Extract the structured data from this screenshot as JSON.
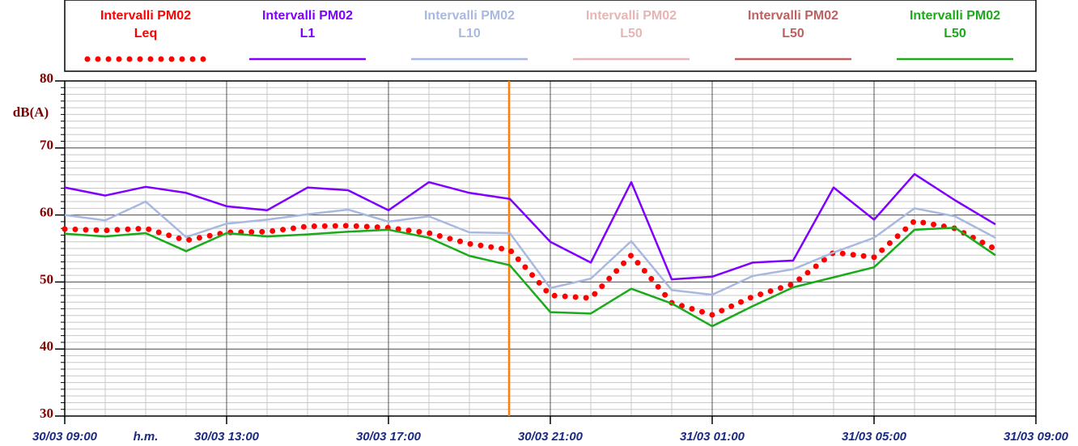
{
  "chart_data": {
    "type": "line",
    "ylabel": "dB(A)",
    "x_unit_label": "h.m.",
    "x": [
      0,
      1,
      2,
      3,
      4,
      5,
      6,
      7,
      8,
      9,
      10,
      11,
      12,
      13,
      14,
      15,
      16,
      17,
      18,
      19,
      20,
      21,
      22,
      23
    ],
    "xlim": [
      0,
      24
    ],
    "xticks": [
      {
        "value": 0,
        "label": "30/03 09:00"
      },
      {
        "value": 4,
        "label": "30/03 13:00"
      },
      {
        "value": 8,
        "label": "30/03 17:00"
      },
      {
        "value": 12,
        "label": "30/03 21:00"
      },
      {
        "value": 16,
        "label": "31/03 01:00"
      },
      {
        "value": 20,
        "label": "31/03 05:00"
      },
      {
        "value": 24,
        "label": "31/03 09:00"
      }
    ],
    "ylim": [
      30,
      80
    ],
    "yticks": [
      30,
      40,
      50,
      60,
      70,
      80
    ],
    "grid": true,
    "legend": "top",
    "series": [
      {
        "name": "Intervalli PM02 Leq",
        "color": "#ff0000",
        "style": "dots",
        "values": [
          57.9,
          57.7,
          58.0,
          56.2,
          57.4,
          57.5,
          58.3,
          58.4,
          58.1,
          57.3,
          55.7,
          54.8,
          48.0,
          47.6,
          54.0,
          46.9,
          45.1,
          47.8,
          49.7,
          54.4,
          53.7,
          59.1,
          58.0,
          54.9
        ]
      },
      {
        "name": "Intervalli PM02 L1",
        "color": "#7f00ff",
        "style": "line",
        "values": [
          64.1,
          62.9,
          64.2,
          63.3,
          61.3,
          60.7,
          64.1,
          63.7,
          60.7,
          64.9,
          63.3,
          62.4,
          56.0,
          52.9,
          64.9,
          50.4,
          50.8,
          52.9,
          53.2,
          64.1,
          59.3,
          66.1,
          62.2,
          58.6
        ]
      },
      {
        "name": "Intervalli PM02 L10",
        "color": "#a8b8e0",
        "style": "line",
        "values": [
          60.0,
          59.2,
          62.0,
          56.7,
          58.7,
          59.3,
          60.1,
          60.8,
          59.0,
          59.8,
          57.4,
          57.3,
          49.1,
          50.5,
          56.1,
          48.8,
          48.1,
          50.9,
          51.9,
          54.4,
          56.6,
          61.0,
          59.8,
          56.6
        ]
      },
      {
        "name": "Intervalli PM02 L50",
        "color": "#e8b4b4",
        "style": "line",
        "values": [
          null,
          null,
          null,
          null,
          null,
          null,
          null,
          null,
          null,
          null,
          null,
          null,
          null,
          null,
          null,
          null,
          null,
          null,
          null,
          null,
          null,
          null,
          null,
          null
        ]
      },
      {
        "name": "Intervalli PM02 L50",
        "color": "#c06060",
        "style": "line",
        "values": [
          null,
          null,
          null,
          null,
          null,
          null,
          null,
          null,
          null,
          null,
          null,
          null,
          null,
          null,
          null,
          null,
          null,
          null,
          null,
          null,
          null,
          null,
          null,
          null
        ]
      },
      {
        "name": "Intervalli PM02 L50",
        "color": "#1aaa1a",
        "style": "line",
        "values": [
          57.2,
          56.8,
          57.3,
          54.6,
          57.3,
          56.8,
          57.1,
          57.5,
          57.8,
          56.6,
          53.9,
          52.5,
          45.5,
          45.3,
          49.0,
          46.8,
          43.4,
          46.4,
          49.2,
          50.7,
          52.2,
          57.8,
          58.1,
          54.0
        ]
      }
    ]
  }
}
